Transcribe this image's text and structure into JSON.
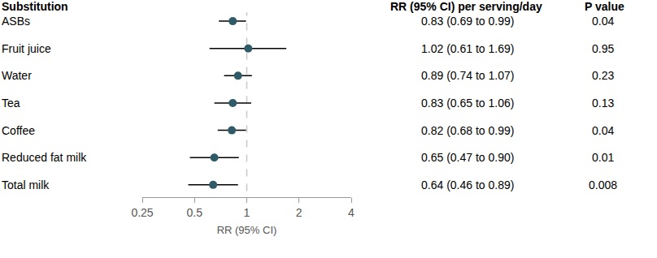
{
  "chart_data": {
    "type": "forest",
    "column_headers": [
      "Substitution",
      "RR (95% CI) per serving/day",
      "P value"
    ],
    "categories": [
      "ASBs",
      "Fruit juice",
      "Water",
      "Tea",
      "Coffee",
      "Reduced fat milk",
      "Total milk"
    ],
    "values": [
      0.83,
      1.02,
      0.89,
      0.83,
      0.82,
      0.65,
      0.64
    ],
    "lower": [
      0.69,
      0.61,
      0.74,
      0.65,
      0.68,
      0.47,
      0.46
    ],
    "upper": [
      0.99,
      1.69,
      1.07,
      1.06,
      0.99,
      0.9,
      0.89
    ],
    "value_labels": [
      "0.83 (0.69 to 0.99)",
      "1.02 (0.61 to 1.69)",
      "0.89 (0.74 to 1.07)",
      "0.83 (0.65 to 1.06)",
      "0.82 (0.68 to 0.99)",
      "0.65 (0.47 to 0.90)",
      "0.64 (0.46 to 0.89)"
    ],
    "p_values": [
      0.04,
      0.95,
      0.23,
      0.13,
      0.04,
      0.01,
      0.008
    ],
    "xlabel": "RR (95% CI)",
    "log": "x",
    "xlim": [
      0.25,
      4
    ],
    "xticks": [
      0.25,
      0.5,
      1,
      2,
      4
    ],
    "reference_line": 1,
    "color": "#2f5b68",
    "marker": "circle",
    "grid": false
  }
}
